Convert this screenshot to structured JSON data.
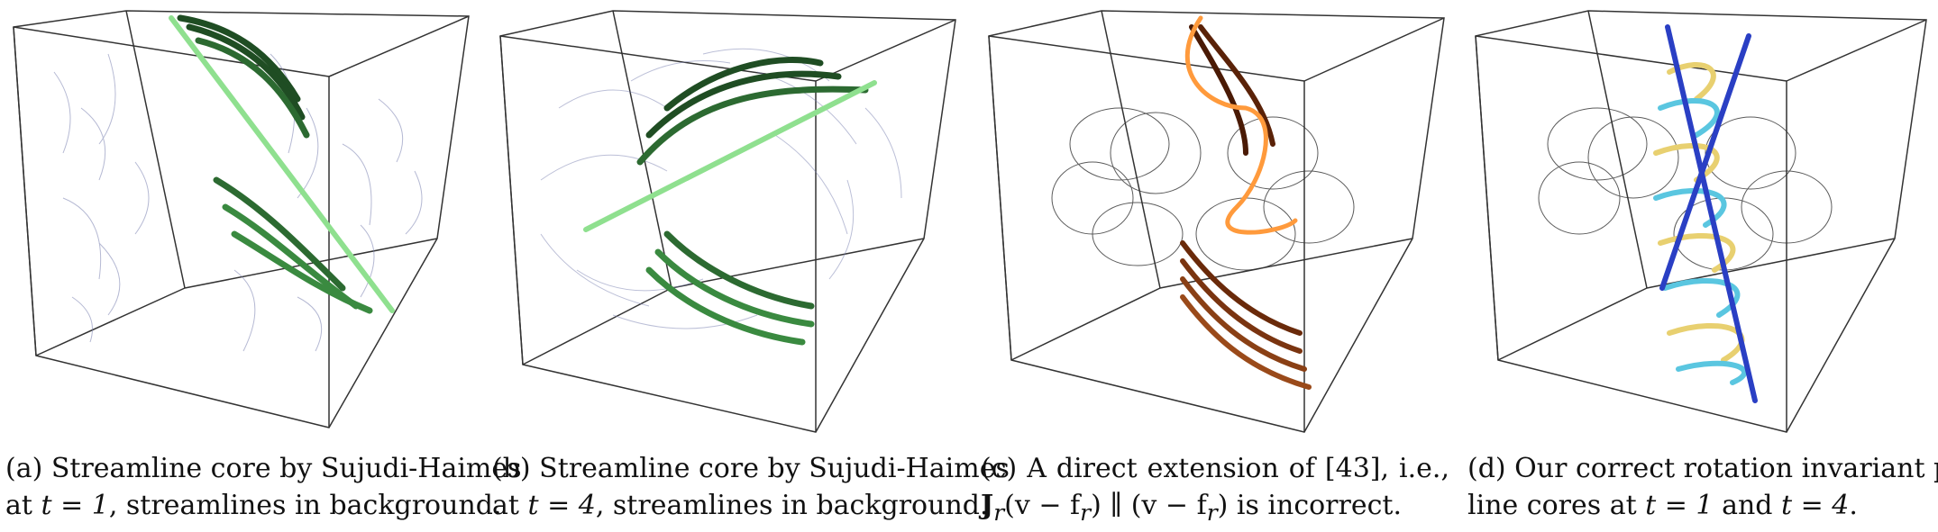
{
  "figure": {
    "panels": [
      {
        "label": "(a)",
        "caption_line1": "Streamline core by Sujudi-Haimes",
        "caption_line2_pre": "at ",
        "caption_line2_math": "t = 1",
        "caption_line2_post": ", streamlines in background."
      },
      {
        "label": "(b)",
        "caption_line1": "Streamline core by Sujudi-Haimes",
        "caption_line2_pre": "at ",
        "caption_line2_math": "t = 4",
        "caption_line2_post": ", streamlines in background."
      },
      {
        "label": "(c)",
        "caption_line1": "A direct extension of [43], i.e.,",
        "caption_line2_math": "J",
        "caption_line2_sub": "r",
        "caption_line2_expr": "(v − f",
        "caption_line2_sub2": "r",
        "caption_line2_expr2": ") ∥ (v − f",
        "caption_line2_sub3": "r",
        "caption_line2_post": ") is incorrect."
      },
      {
        "label": "(d)",
        "caption_line1": "Our correct rotation invariant path-",
        "caption_line2_pre": "line cores at ",
        "caption_line2_math": "t = 1",
        "caption_line2_mid": " and ",
        "caption_line2_math2": "t = 4",
        "caption_line2_post": "."
      }
    ],
    "colors": {
      "box": "#333333",
      "streamline": "#7a80b0",
      "green_dark": "#1f4d23",
      "green_light": "#8fe08f",
      "orange_dark": "#4a1a05",
      "orange_light": "#ff9a3c",
      "blue": "#2a3fc4",
      "yellow": "#e8d070",
      "cyan": "#5ac6e0"
    }
  }
}
